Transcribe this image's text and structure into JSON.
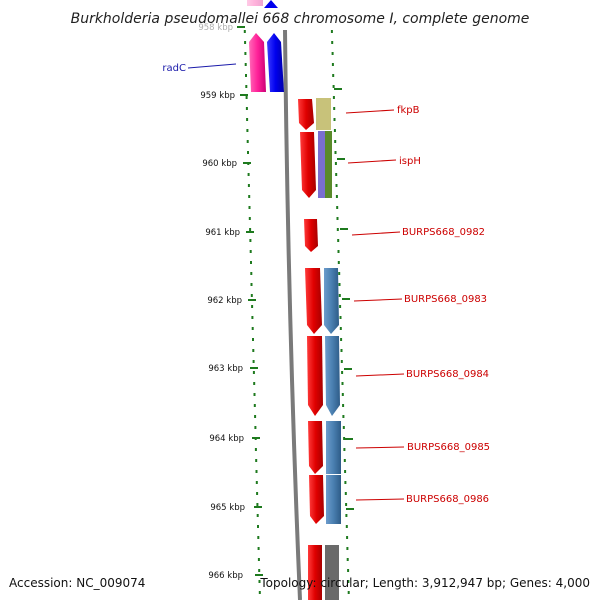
{
  "title": "Burkholderia pseudomallei 668 chromosome I, complete genome",
  "footer": {
    "accession": "Accession: NC_009074",
    "stats": "Topology: circular; Length: 3,912,947 bp; Genes: 4,000"
  },
  "scale": {
    "unit": "kbp",
    "ticks": [
      "958 kbp",
      "959 kbp",
      "960 kbp",
      "961 kbp",
      "962 kbp",
      "963 kbp",
      "964 kbp",
      "965 kbp",
      "966 kbp"
    ]
  },
  "genes": [
    {
      "name": "radC",
      "color": "#1a1aaa"
    },
    {
      "name": "fkpB",
      "color": "#cc0000"
    },
    {
      "name": "ispH",
      "color": "#cc0000"
    },
    {
      "name": "BURPS668_0982",
      "color": "#cc0000"
    },
    {
      "name": "BURPS668_0983",
      "color": "#cc0000"
    },
    {
      "name": "BURPS668_0984",
      "color": "#cc0000"
    },
    {
      "name": "BURPS668_0985",
      "color": "#cc0000"
    },
    {
      "name": "BURPS668_0986",
      "color": "#cc0000"
    }
  ],
  "colors": {
    "backbone": "#7a7a7a",
    "ticks": "#1e7a1e",
    "gene_red": "#e00000",
    "gene_pink": "#ff2299",
    "gene_blue": "#0000ee",
    "cog_steelblue": "#4a7fb0",
    "cog_olive": "#c8c27a",
    "cog_purple": "#7a6ed0",
    "cog_green": "#5a8a2a",
    "cog_gray": "#6a6a6a"
  }
}
